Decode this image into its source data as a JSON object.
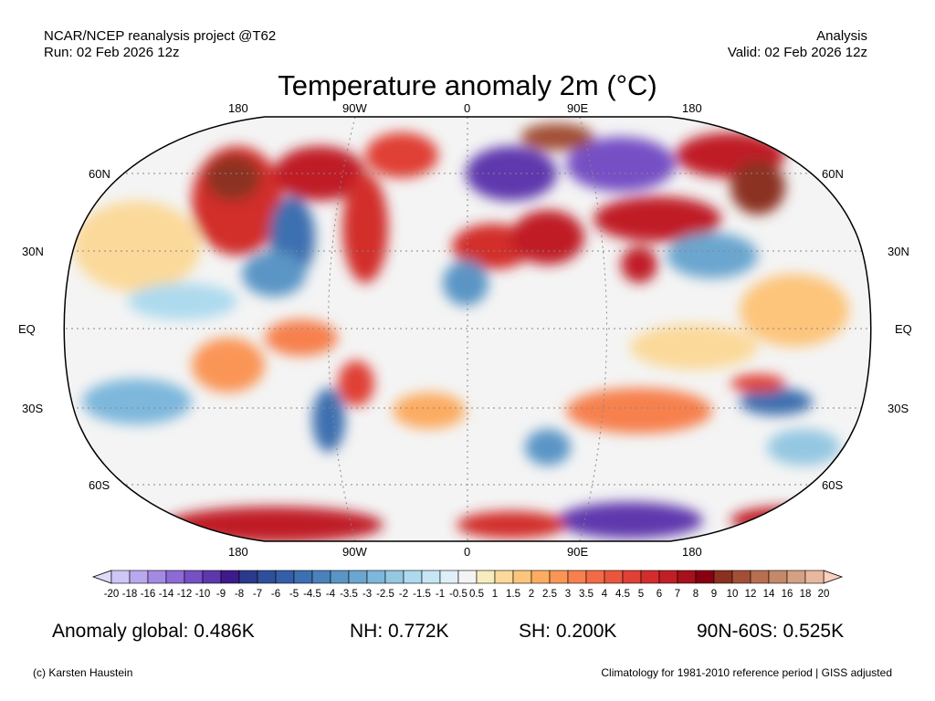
{
  "header": {
    "left_line1": "NCAR/NCEP reanalysis project @T62",
    "left_line2": "Run: 02 Feb 2026 12z",
    "right_line1": "Analysis",
    "right_line2": "Valid: 02 Feb 2026 12z",
    "title": "Temperature anomaly 2m (°C)"
  },
  "map": {
    "projection": "Robinson",
    "top_lon_labels": [
      "180",
      "90W",
      "0",
      "90E",
      "180"
    ],
    "bottom_lon_labels": [
      "180",
      "90W",
      "0",
      "90E",
      "180"
    ],
    "lat_labels": [
      "60N",
      "30N",
      "EQ",
      "30S",
      "60S"
    ]
  },
  "colorbar": {
    "labels": [
      "-20",
      "-18",
      "-16",
      "-14",
      "-12",
      "-10",
      "-9",
      "-8",
      "-7",
      "-6",
      "-5",
      "-4.5",
      "-4",
      "-3.5",
      "-3",
      "-2.5",
      "-2",
      "-1.5",
      "-1",
      "-0.5",
      "0.5",
      "1",
      "1.5",
      "2",
      "2.5",
      "3",
      "3.5",
      "4",
      "4.5",
      "5",
      "6",
      "7",
      "8",
      "9",
      "10",
      "12",
      "14",
      "16",
      "18",
      "20"
    ],
    "colors": [
      "#cfc6f5",
      "#b9a8ef",
      "#a48ae4",
      "#8d6ad6",
      "#7650c5",
      "#5f37ad",
      "#3f1a8a",
      "#2c3a8c",
      "#2e4f9c",
      "#345fa8",
      "#3d70b0",
      "#4a82bb",
      "#5a95c6",
      "#6aa6cf",
      "#7db7db",
      "#94c7e2",
      "#addaee",
      "#c6e6f5",
      "#dfeffa",
      "#f4f4f4",
      "#f7ecbd",
      "#fbd99a",
      "#fdc57c",
      "#fcac62",
      "#fa9556",
      "#f7804e",
      "#f26b46",
      "#eb553d",
      "#e04035",
      "#d22d2c",
      "#c01f25",
      "#a8101d",
      "#870011",
      "#8c3020",
      "#a24f36",
      "#b66f50",
      "#c4886a",
      "#d6a083",
      "#e8b89e"
    ],
    "under_color": "#e0dbfa",
    "over_color": "#fdd0bd"
  },
  "stats": {
    "global": "Anomaly global: 0.486K",
    "nh": "NH: 0.772K",
    "sh": "SH: 0.200K",
    "band": "90N-60S: 0.525K"
  },
  "footer": {
    "left": "(c) Karsten Haustein",
    "right": "Climatology for 1981-2010 reference period | GISS adjusted"
  }
}
